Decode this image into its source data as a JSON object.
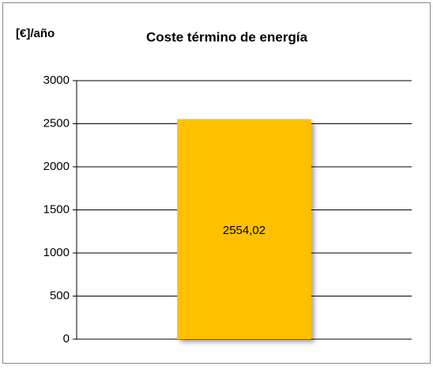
{
  "chart_data": {
    "type": "bar",
    "title": "Coste término de energía",
    "y_axis_label": "[€]/año",
    "categories": [
      null
    ],
    "values": [
      2554.02
    ],
    "value_labels": [
      "2554,02"
    ],
    "color": "#ffc000",
    "ylim": [
      0,
      3000
    ],
    "yticks": [
      0,
      500,
      1000,
      1500,
      2000,
      2500,
      3000
    ],
    "grid": true
  }
}
